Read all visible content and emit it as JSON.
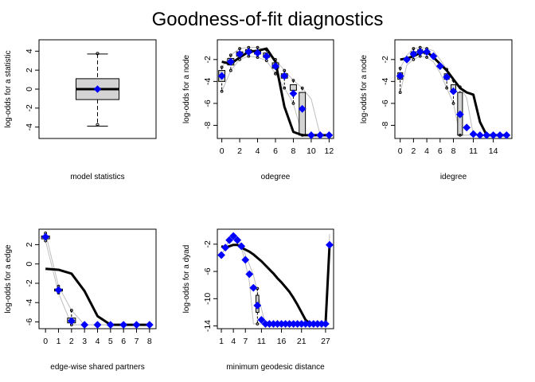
{
  "title": "Goodness-of-fit diagnostics",
  "colors": {
    "model": "#0000ff",
    "observed": "#000000",
    "box": "#d3d3d3",
    "range": "#bebebe"
  },
  "chart_data": [
    {
      "type": "box",
      "panel": "model statistics",
      "xlabel": "model statistics",
      "ylabel": "log-odds for a statistic",
      "ylim": [
        -5.2,
        5.2
      ],
      "yticks": [
        -4,
        -2,
        0,
        2,
        4
      ],
      "box": {
        "min": -3.9,
        "q1": -1.1,
        "median": 0.0,
        "q3": 1.1,
        "max": 3.7
      },
      "outliers": [
        -3.75,
        3.75
      ],
      "observed": 0.0
    },
    {
      "type": "line",
      "panel": "odegree",
      "xlabel": "odegree",
      "ylabel": "log-odds for a node",
      "xlim": [
        -0.5,
        12.5
      ],
      "ylim": [
        -9.2,
        -0.2
      ],
      "xticks": [
        0,
        2,
        4,
        6,
        8,
        10,
        12
      ],
      "yticks": [
        -2,
        -4,
        -6,
        -8
      ],
      "x": [
        0,
        1,
        2,
        3,
        4,
        5,
        6,
        7,
        8,
        9,
        10,
        11,
        12
      ],
      "observed": [
        -3.5,
        -2.2,
        -1.5,
        -1.3,
        -1.4,
        -1.7,
        -2.6,
        -3.5,
        -5.1,
        -6.5,
        -8.9,
        -8.9,
        -8.9
      ],
      "simulated_mean": [
        -2.2,
        -2.4,
        -1.8,
        -1.3,
        -1.2,
        -1.0,
        -2.2,
        -6.3,
        -8.6,
        -8.9,
        -8.9,
        -8.9,
        -8.9
      ],
      "boxes": [
        {
          "x": 0,
          "q1": -4.0,
          "q3": -3.0,
          "min": -4.9,
          "max": -2.7
        },
        {
          "x": 1,
          "q1": -2.5,
          "q3": -1.9,
          "min": -3.0,
          "max": -1.6
        },
        {
          "x": 2,
          "q1": -1.7,
          "q3": -1.3,
          "min": -2.0,
          "max": -1.0
        },
        {
          "x": 3,
          "q1": -1.4,
          "q3": -1.1,
          "min": -1.7,
          "max": -0.9
        },
        {
          "x": 4,
          "q1": -1.5,
          "q3": -1.2,
          "min": -1.8,
          "max": -0.9
        },
        {
          "x": 5,
          "q1": -1.8,
          "q3": -1.4,
          "min": -2.1,
          "max": -1.1
        },
        {
          "x": 6,
          "q1": -2.8,
          "q3": -2.3,
          "min": -3.3,
          "max": -2.0
        },
        {
          "x": 7,
          "q1": -3.7,
          "q3": -3.3,
          "min": -4.6,
          "max": -3.0
        },
        {
          "x": 8,
          "q1": -4.8,
          "q3": -4.3,
          "min": -6.0,
          "max": -3.9
        },
        {
          "x": 9,
          "q1": -8.9,
          "q3": -5.0,
          "min": -8.9,
          "max": -4.6
        }
      ],
      "range_lower": [
        -4.9,
        -3.0,
        -2.0,
        -1.7,
        -1.8,
        -2.1,
        -3.3,
        -4.6,
        -6.0,
        -8.9,
        -8.9,
        -8.9,
        -8.9
      ],
      "range_upper": [
        -2.7,
        -1.6,
        -1.0,
        -0.9,
        -0.9,
        -1.1,
        -2.0,
        -3.0,
        -3.9,
        -4.6,
        -5.6,
        -8.9,
        -8.9
      ]
    },
    {
      "type": "line",
      "panel": "idegree",
      "xlabel": "idegree",
      "ylabel": "log-odds for a node",
      "xlim": [
        -0.8,
        16.8
      ],
      "ylim": [
        -9.2,
        -0.2
      ],
      "xticks": [
        0,
        2,
        4,
        6,
        8,
        11,
        14
      ],
      "yticks": [
        -2,
        -4,
        -6,
        -8
      ],
      "x": [
        0,
        1,
        2,
        3,
        4,
        5,
        6,
        7,
        8,
        9,
        10,
        11,
        12,
        13,
        14,
        15,
        16
      ],
      "observed": [
        -3.5,
        -2.0,
        -1.5,
        -1.3,
        -1.3,
        -1.7,
        -2.6,
        -3.6,
        -4.9,
        -7.0,
        -8.2,
        -8.8,
        -8.9,
        -8.9,
        -8.9,
        -8.9,
        -8.9
      ],
      "simulated_mean": [
        -2.0,
        -1.9,
        -1.7,
        -1.4,
        -1.3,
        -1.8,
        -2.4,
        -3.0,
        -3.8,
        -4.6,
        -5.0,
        -5.2,
        -7.7,
        -8.9,
        -8.9,
        -8.9,
        -8.9
      ],
      "boxes": [
        {
          "x": 0,
          "q1": -3.8,
          "q3": -3.2,
          "min": -5.0,
          "max": -2.8
        },
        {
          "x": 2,
          "q1": -1.6,
          "q3": -1.3,
          "min": -2.0,
          "max": -1.0
        },
        {
          "x": 3,
          "q1": -1.4,
          "q3": -1.1,
          "min": -1.7,
          "max": -0.9
        },
        {
          "x": 4,
          "q1": -1.5,
          "q3": -1.2,
          "min": -1.8,
          "max": -1.0
        },
        {
          "x": 7,
          "q1": -3.8,
          "q3": -3.3,
          "min": -4.6,
          "max": -2.9
        },
        {
          "x": 8,
          "q1": -5.0,
          "q3": -4.3,
          "min": -6.0,
          "max": -3.9
        },
        {
          "x": 9,
          "q1": -8.9,
          "q3": -5.0,
          "min": -8.9,
          "max": -4.5
        }
      ],
      "range_lower": [
        -5.0,
        -2.5,
        -2.0,
        -1.7,
        -1.8,
        -2.2,
        -3.2,
        -4.6,
        -6.0,
        -8.9,
        -8.9,
        -8.9,
        -8.9,
        -8.9,
        -8.9,
        -8.9,
        -8.9
      ],
      "range_upper": [
        -2.8,
        -1.6,
        -1.0,
        -0.9,
        -1.0,
        -1.2,
        -2.0,
        -2.9,
        -3.9,
        -4.5,
        -5.5,
        -8.9,
        -8.9,
        -8.9,
        -8.9,
        -8.9,
        -8.9
      ]
    },
    {
      "type": "line",
      "panel": "edge-wise shared partners",
      "xlabel": "edge-wise shared partners",
      "ylabel": "log-odds for a edge",
      "xlim": [
        -0.5,
        8.5
      ],
      "ylim": [
        -6.7,
        3.6
      ],
      "xticks": [
        0,
        1,
        2,
        3,
        4,
        5,
        6,
        7,
        8
      ],
      "yticks": [
        2,
        0,
        -2,
        -4,
        -6
      ],
      "x": [
        0,
        1,
        2,
        3,
        4,
        5,
        6,
        7,
        8
      ],
      "observed": [
        2.8,
        -2.7,
        -5.9,
        -6.3,
        -6.3,
        -6.3,
        -6.3,
        -6.3,
        -6.3
      ],
      "simulated_mean": [
        -0.5,
        -0.6,
        -1.0,
        -2.8,
        -5.4,
        -6.3,
        -6.3,
        -6.3,
        -6.3
      ],
      "boxes": [
        {
          "x": 0,
          "q1": 2.6,
          "q3": 2.9,
          "min": 2.4,
          "max": 3.2
        },
        {
          "x": 1,
          "q1": -2.8,
          "q3": -2.6,
          "min": -3.0,
          "max": -2.3
        },
        {
          "x": 2,
          "q1": -6.1,
          "q3": -5.6,
          "min": -6.3,
          "max": -4.8
        }
      ],
      "range_lower": [
        2.4,
        -3.0,
        -6.3,
        -6.3,
        -6.3,
        -6.3,
        -6.3,
        -6.3,
        -6.3
      ],
      "range_upper": [
        3.2,
        -2.3,
        -4.8,
        -6.3,
        -6.3,
        -6.3,
        -6.3,
        -6.3,
        -6.3
      ]
    },
    {
      "type": "line",
      "panel": "minimum geodesic distance",
      "xlabel": "minimum geodesic distance",
      "ylabel": "log-odds for a dyad",
      "xlim": [
        0,
        29
      ],
      "ylim": [
        -14.4,
        0.2
      ],
      "xticks": [
        1,
        4,
        7,
        11,
        16,
        21,
        27
      ],
      "yticks": [
        -2,
        -6,
        -10,
        -14
      ],
      "x": [
        1,
        2,
        3,
        4,
        5,
        6,
        7,
        8,
        9,
        10,
        11,
        12,
        13,
        14,
        15,
        16,
        17,
        18,
        19,
        20,
        21,
        22,
        23,
        24,
        25,
        26,
        27,
        28
      ],
      "observed": [
        -3.6,
        -2.5,
        -1.4,
        -0.8,
        -1.4,
        -2.3,
        -4.3,
        -6.4,
        -8.4,
        -11.0,
        -13.1,
        -13.7,
        -13.7,
        -13.7,
        -13.7,
        -13.7,
        -13.7,
        -13.7,
        -13.7,
        -13.7,
        -13.7,
        -13.7,
        -13.7,
        -13.7,
        -13.7,
        -13.7,
        -13.7,
        -2.1
      ],
      "simulated_mean": [
        -2.3,
        -2.5,
        -2.3,
        -2.1,
        -2.1,
        -2.5,
        -2.8,
        -3.1,
        -3.5,
        -4.0,
        -4.5,
        -5.1,
        -5.7,
        -6.3,
        -7.0,
        -7.6,
        -8.3,
        -9.0,
        -9.9,
        -10.9,
        -12.0,
        -13.1,
        -13.6,
        -13.7,
        -13.7,
        -13.7,
        -13.7,
        -2.1
      ],
      "range_lower": [
        -3.6,
        -2.5,
        -1.5,
        -0.9,
        -1.5,
        -2.5,
        -4.8,
        -7.5,
        -13.7,
        -13.7,
        -13.7,
        -13.7,
        -13.7,
        -13.7,
        -13.7,
        -13.7,
        -13.7,
        -13.7,
        -13.7,
        -13.7,
        -13.7,
        -13.7,
        -13.7,
        -13.7,
        -13.7,
        -13.7,
        -13.7,
        -2.8
      ],
      "range_upper": [
        -3.6,
        -2.5,
        -1.3,
        -0.7,
        -1.3,
        -2.1,
        -3.6,
        -5.0,
        -6.5,
        -9.0,
        -11.5,
        -13.7,
        -13.7,
        -13.7,
        -13.7,
        -13.7,
        -13.7,
        -13.7,
        -13.7,
        -13.7,
        -13.7,
        -13.7,
        -13.7,
        -13.7,
        -13.7,
        -13.7,
        -13.7,
        -0.5
      ],
      "boxes": [
        {
          "x": 10,
          "q1": -12.0,
          "q3": -9.5,
          "min": -13.7,
          "max": -8.5
        }
      ]
    }
  ]
}
